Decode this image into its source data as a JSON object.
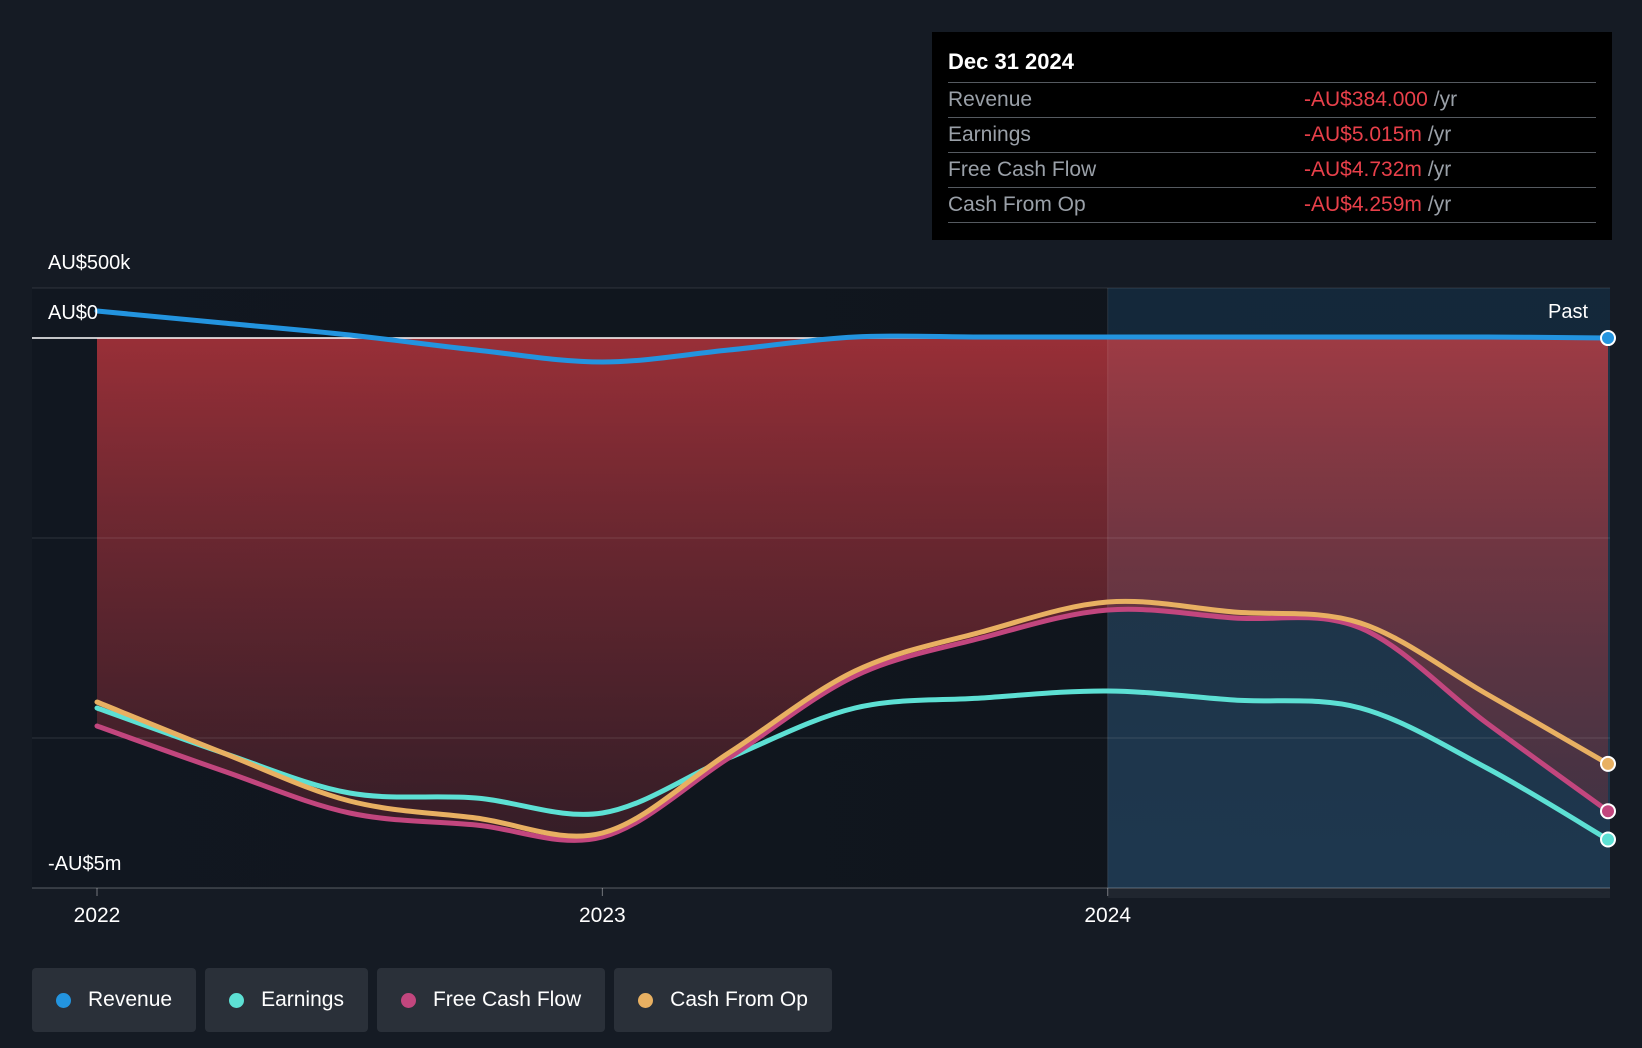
{
  "tooltip": {
    "date": "Dec 31 2024",
    "rows": [
      {
        "label": "Revenue",
        "value": "-AU$384.000",
        "unit": "/yr"
      },
      {
        "label": "Earnings",
        "value": "-AU$5.015m",
        "unit": "/yr"
      },
      {
        "label": "Free Cash Flow",
        "value": "-AU$4.732m",
        "unit": "/yr"
      },
      {
        "label": "Cash From Op",
        "value": "-AU$4.259m",
        "unit": "/yr"
      }
    ]
  },
  "past_label": "Past",
  "legend": [
    {
      "name": "Revenue",
      "color": "#2394df"
    },
    {
      "name": "Earnings",
      "color": "#5de0d4"
    },
    {
      "name": "Free Cash Flow",
      "color": "#c2467e"
    },
    {
      "name": "Cash From Op",
      "color": "#e8b062"
    }
  ],
  "chart_data": {
    "type": "line",
    "y_tick_labels": [
      "AU$500k",
      "AU$0",
      "-AU$5m"
    ],
    "x_tick_labels": [
      "2022",
      "2023",
      "2024"
    ],
    "ylim": [
      -5500000,
      500000
    ],
    "xlim": [
      2022.0,
      2024.99
    ],
    "highlight_region": {
      "from": 2024.0,
      "to": 2024.99,
      "label": "Past"
    },
    "grid": true,
    "legend_position": "bottom",
    "series": [
      {
        "name": "Revenue",
        "color": "#2394df",
        "x": [
          2022.0,
          2022.25,
          2022.5,
          2022.75,
          2023.0,
          2023.25,
          2023.5,
          2023.75,
          2024.0,
          2024.25,
          2024.5,
          2024.75,
          2024.99
        ],
        "y": [
          270000,
          150000,
          30000,
          -120000,
          -240000,
          -120000,
          10000,
          10000,
          10000,
          10000,
          10000,
          10000,
          -384
        ]
      },
      {
        "name": "Earnings",
        "color": "#5de0d4",
        "x": [
          2022.0,
          2022.25,
          2022.5,
          2022.75,
          2023.0,
          2023.25,
          2023.5,
          2023.75,
          2024.0,
          2024.25,
          2024.5,
          2024.75,
          2024.99
        ],
        "y": [
          -3700000,
          -4150000,
          -4550000,
          -4600000,
          -4750000,
          -4200000,
          -3700000,
          -3600000,
          -3530000,
          -3620000,
          -3700000,
          -4300000,
          -5015000
        ]
      },
      {
        "name": "Free Cash Flow",
        "color": "#c2467e",
        "x": [
          2022.0,
          2022.25,
          2022.5,
          2022.75,
          2023.0,
          2023.25,
          2023.5,
          2023.75,
          2024.0,
          2024.25,
          2024.5,
          2024.75,
          2024.99
        ],
        "y": [
          -3880000,
          -4330000,
          -4750000,
          -4870000,
          -4990000,
          -4200000,
          -3380000,
          -3000000,
          -2720000,
          -2800000,
          -2900000,
          -3850000,
          -4732000
        ]
      },
      {
        "name": "Cash From Op",
        "color": "#e8b062",
        "x": [
          2022.0,
          2022.25,
          2022.5,
          2022.75,
          2023.0,
          2023.25,
          2023.5,
          2023.75,
          2024.0,
          2024.25,
          2024.5,
          2024.75,
          2024.99
        ],
        "y": [
          -3640000,
          -4150000,
          -4630000,
          -4800000,
          -4950000,
          -4150000,
          -3330000,
          -2940000,
          -2640000,
          -2740000,
          -2850000,
          -3560000,
          -4259000
        ]
      }
    ]
  }
}
